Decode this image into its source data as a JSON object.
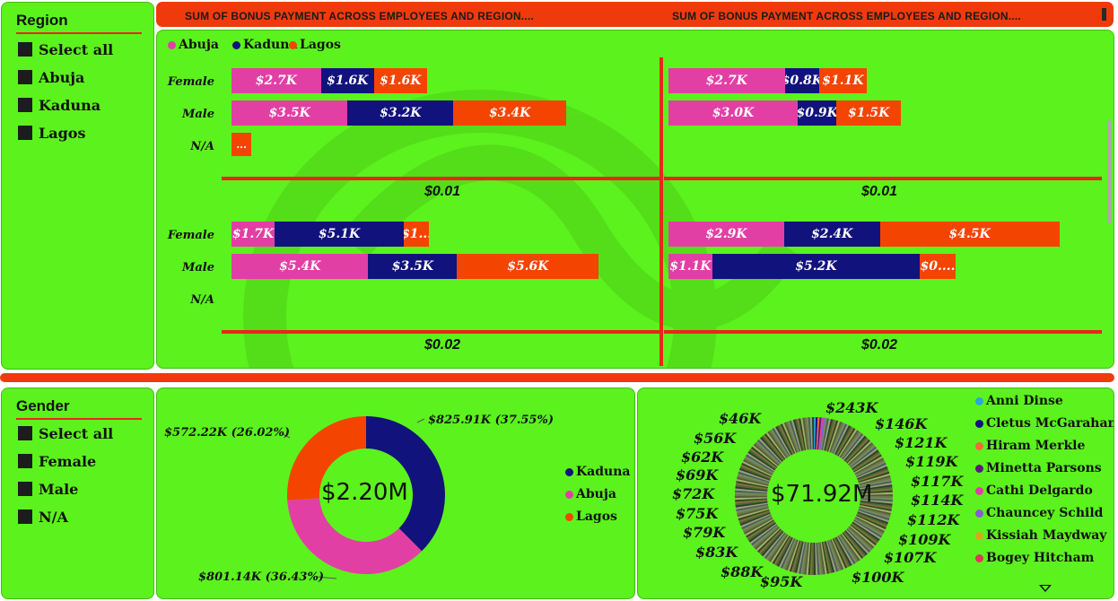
{
  "region_slicer": {
    "title": "Region",
    "items": [
      "Select all",
      "Abuja",
      "Kaduna",
      "Lagos"
    ]
  },
  "gender_slicer": {
    "title": "Gender",
    "items": [
      "Select all",
      "Female",
      "Male",
      "N/A"
    ]
  },
  "header": {
    "title_left": "SUM OF BONUS PAYMENT ACROSS EMPLOYEES AND REGION....",
    "title_right": "SUM OF BONUS PAYMENT ACROSS EMPLOYEES AND REGION...."
  },
  "colors": {
    "abuja": "#e23fa5",
    "kaduna": "#12127d",
    "lagos": "#f44402",
    "panel": "#5cf21d",
    "accent": "#e8261d"
  },
  "chart_data": [
    {
      "type": "bar",
      "stacked": true,
      "orientation": "horizontal",
      "legend": [
        "Abuja",
        "Kaduna",
        "Lagos"
      ],
      "legend_position": "top-left",
      "panels": [
        {
          "id": "tl",
          "total": "$0.01",
          "rows": [
            {
              "label": "Female",
              "values": [
                2.7,
                1.6,
                1.6
              ],
              "labels": [
                "$2.7K",
                "$1.6K",
                "$1.6K"
              ]
            },
            {
              "label": "Male",
              "values": [
                3.5,
                3.2,
                3.4
              ],
              "labels": [
                "$3.5K",
                "$3.2K",
                "$3.4K"
              ]
            },
            {
              "label": "N/A",
              "values": [
                0,
                0,
                0.6
              ],
              "labels": [
                "",
                "",
                "..."
              ]
            }
          ]
        },
        {
          "id": "tr",
          "total": "$0.01",
          "rows": [
            {
              "label": "Female",
              "values": [
                2.7,
                0.8,
                1.1
              ],
              "labels": [
                "$2.7K",
                "$0.8K",
                "$1.1K"
              ]
            },
            {
              "label": "Male",
              "values": [
                3.0,
                0.9,
                1.5
              ],
              "labels": [
                "$3.0K",
                "$0.9K",
                "$1.5K"
              ]
            },
            {
              "label": "N/A",
              "values": [
                0,
                0,
                0
              ],
              "labels": [
                "",
                "",
                ""
              ]
            }
          ]
        },
        {
          "id": "bl",
          "total": "$0.02",
          "rows": [
            {
              "label": "Female",
              "values": [
                1.7,
                5.1,
                1.0
              ],
              "labels": [
                "$1.7K",
                "$5.1K",
                "$1..."
              ]
            },
            {
              "label": "Male",
              "values": [
                5.4,
                3.5,
                5.6
              ],
              "labels": [
                "$5.4K",
                "$3.5K",
                "$5.6K"
              ]
            },
            {
              "label": "N/A",
              "values": [
                0,
                0,
                0
              ],
              "labels": [
                "",
                "",
                ""
              ]
            }
          ]
        },
        {
          "id": "br",
          "total": "$0.02",
          "rows": [
            {
              "label": "Female",
              "values": [
                2.9,
                2.4,
                4.5
              ],
              "labels": [
                "$2.9K",
                "$2.4K",
                "$4.5K"
              ]
            },
            {
              "label": "Male",
              "values": [
                1.1,
                5.2,
                0.9
              ],
              "labels": [
                "$1.1K",
                "$5.2K",
                "$0...."
              ]
            },
            {
              "label": "N/A",
              "values": [
                0,
                0,
                0
              ],
              "labels": [
                "",
                "",
                ""
              ]
            }
          ]
        }
      ]
    },
    {
      "type": "pie",
      "donut": true,
      "center_label": "$2.20M",
      "slices": [
        {
          "name": "Kaduna",
          "value": 825.91,
          "label": "$825.91K (37.55%)",
          "color": "#12127d"
        },
        {
          "name": "Abuja",
          "value": 801.14,
          "label": "$801.14K (36.43%)",
          "color": "#e23fa5"
        },
        {
          "name": "Lagos",
          "value": 572.22,
          "label": "$572.22K (26.02%)",
          "color": "#f44402"
        }
      ],
      "legend": [
        "Kaduna",
        "Abuja",
        "Lagos"
      ],
      "legend_position": "right"
    },
    {
      "type": "pie",
      "donut": true,
      "center_label": "$71.92M",
      "value_labels": [
        "$243K",
        "$146K",
        "$121K",
        "$119K",
        "$117K",
        "$114K",
        "$112K",
        "$109K",
        "$107K",
        "$100K",
        "$95K",
        "$88K",
        "$83K",
        "$79K",
        "$75K",
        "$72K",
        "$69K",
        "$62K",
        "$56K",
        "$46K"
      ],
      "legend": [
        {
          "name": "Anni Dinse",
          "color": "#2aa8d8"
        },
        {
          "name": "Cletus McGarahan",
          "color": "#12127d"
        },
        {
          "name": "Hiram Merkle",
          "color": "#f06a3a"
        },
        {
          "name": "Minetta Parsons",
          "color": "#5a1a7a"
        },
        {
          "name": "Cathi Delgardo",
          "color": "#e23fa5"
        },
        {
          "name": "Chauncey Schild",
          "color": "#8a5ad8"
        },
        {
          "name": "Kissiah Maydway",
          "color": "#d8a81a"
        },
        {
          "name": "Bogey Hitcham",
          "color": "#d83a5a"
        }
      ],
      "legend_position": "right"
    }
  ]
}
